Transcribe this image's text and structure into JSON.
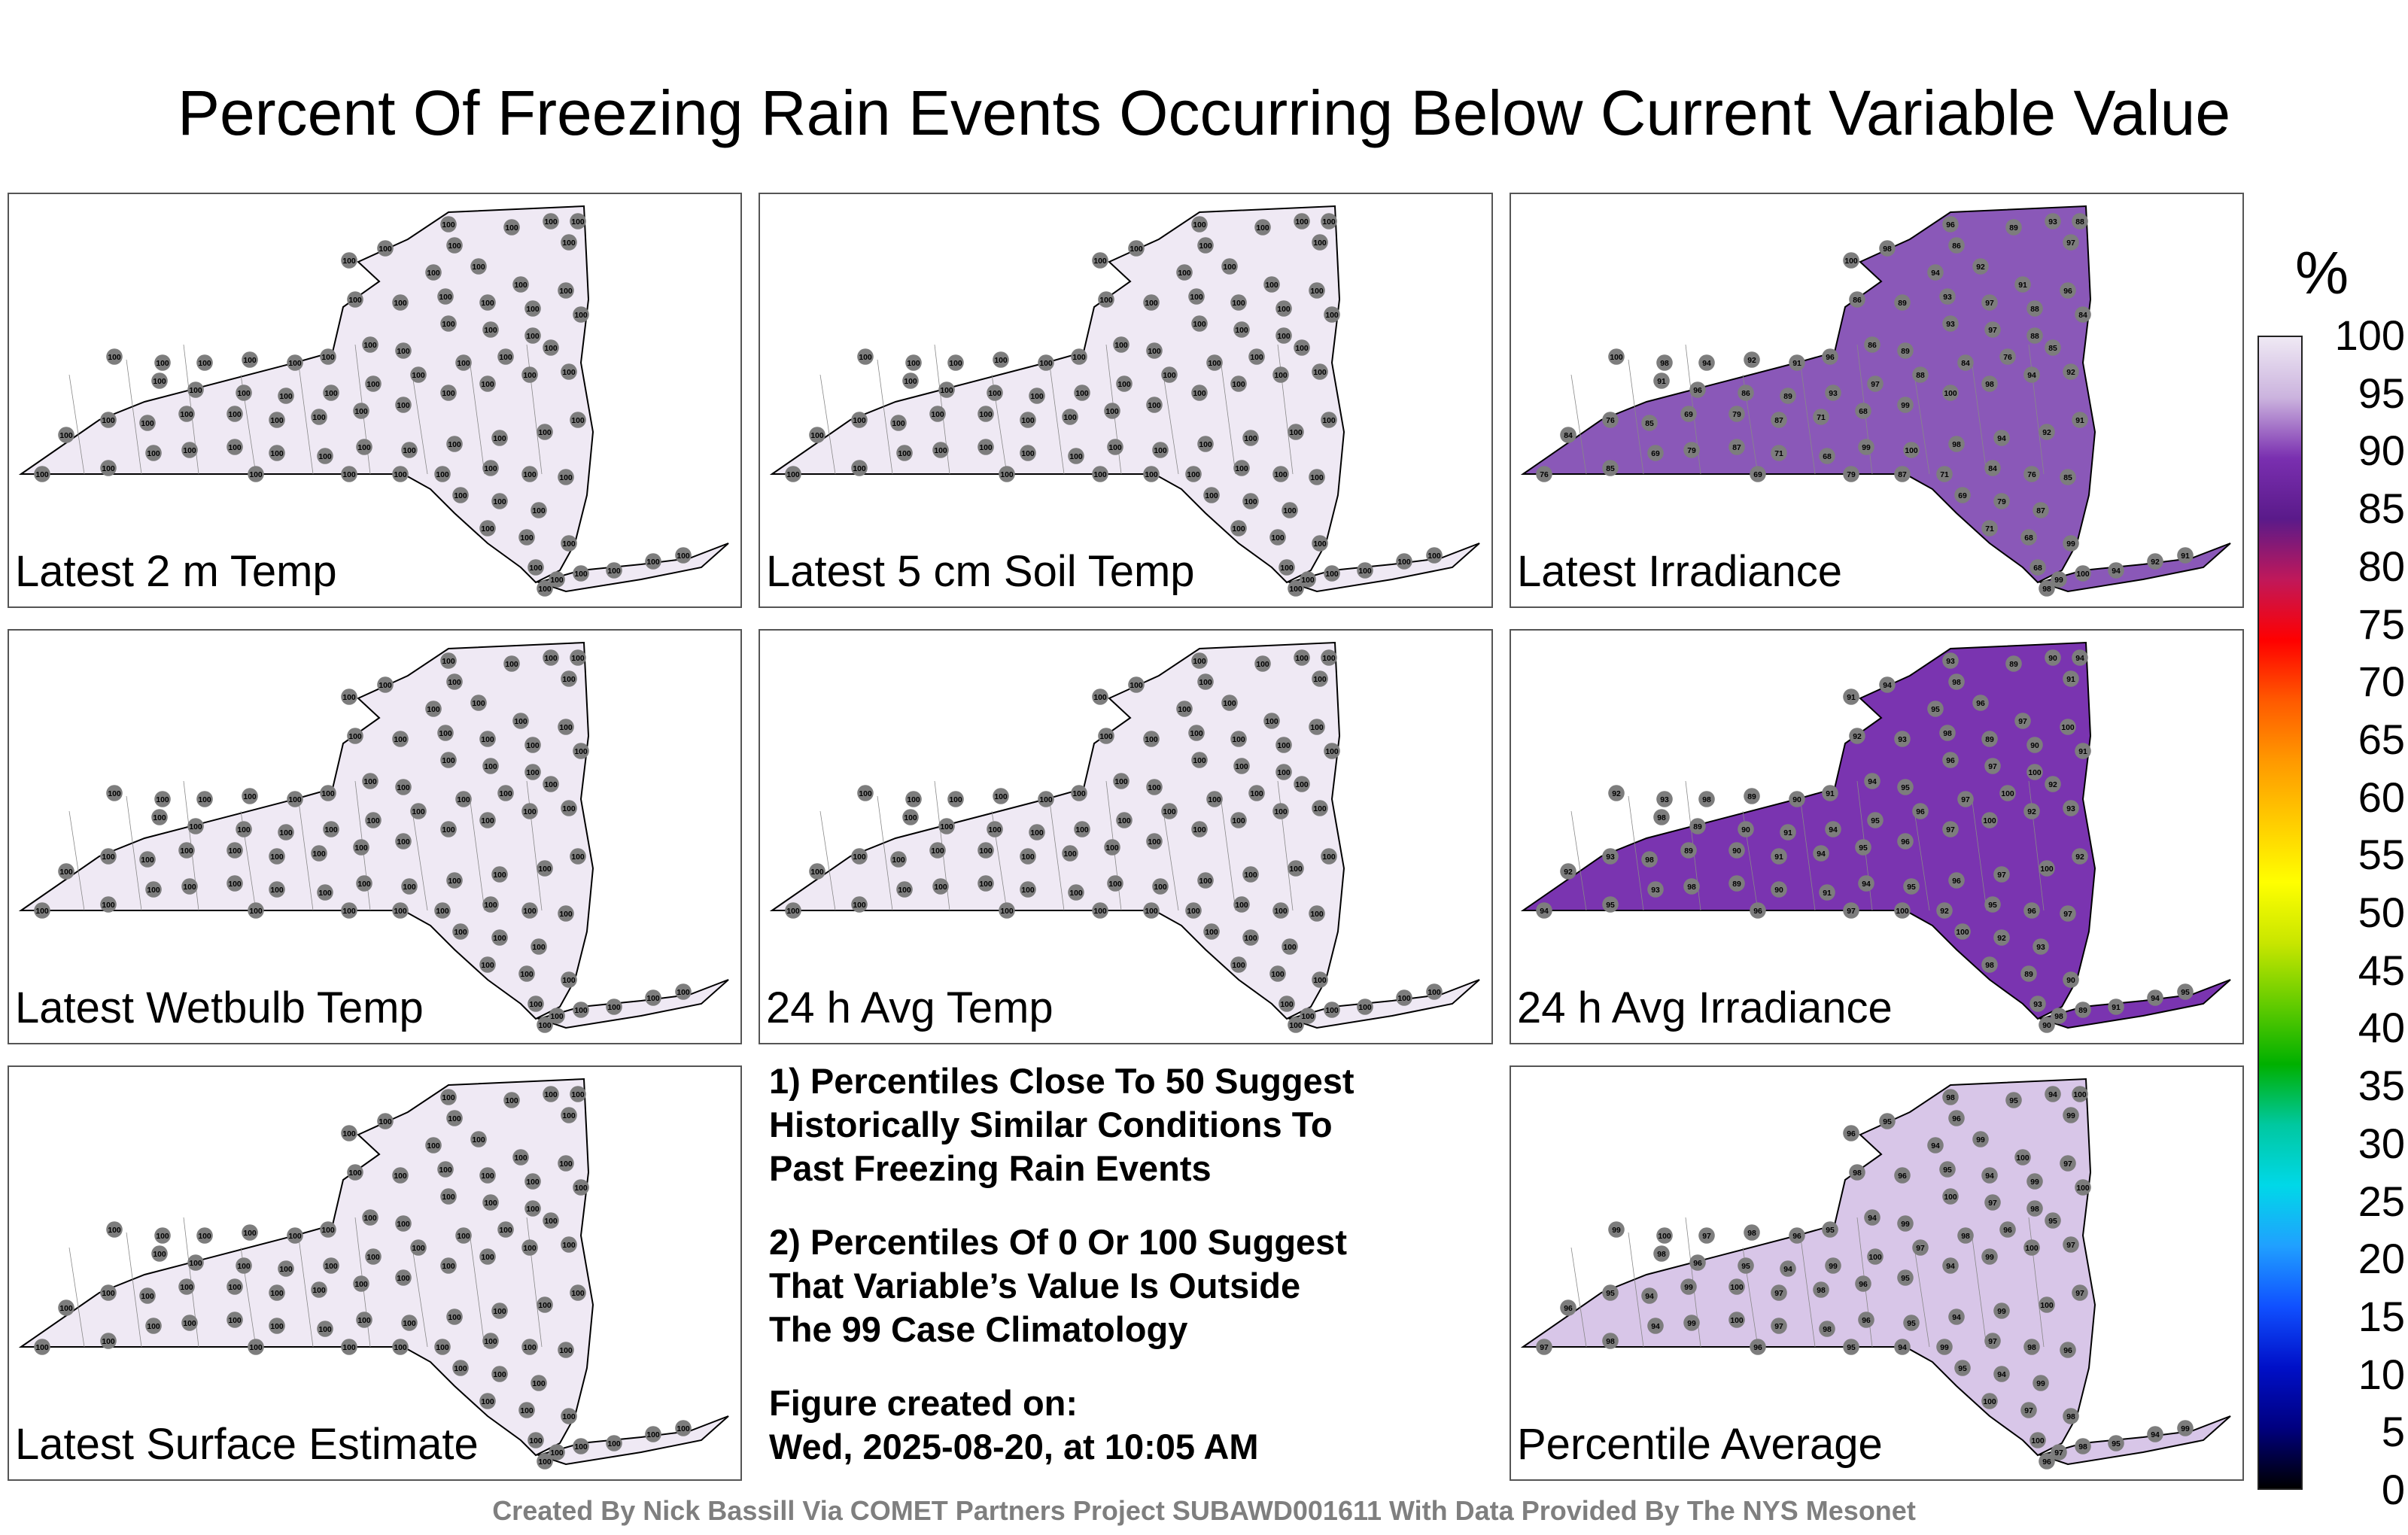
{
  "title": "Percent Of Freezing Rain Events Occurring Below Current Variable Value",
  "panels": [
    {
      "label": "Latest 2 m Temp",
      "fill": "#efe9f4",
      "stations": [
        "100"
      ]
    },
    {
      "label": "Latest 5 cm Soil Temp",
      "fill": "#efe9f4",
      "stations": [
        "100"
      ]
    },
    {
      "label": "Latest Irradiance",
      "fill": "#8a58b8",
      "stations": [
        "100",
        "98",
        "94",
        "92",
        "91",
        "96",
        "86",
        "89",
        "93",
        "97",
        "88",
        "84",
        "76",
        "85",
        "69",
        "79",
        "87",
        "71",
        "68",
        "99"
      ]
    },
    {
      "label": "Latest Wetbulb Temp",
      "fill": "#efe9f4",
      "stations": [
        "100"
      ]
    },
    {
      "label": "24 h Avg Temp",
      "fill": "#efe9f4",
      "stations": [
        "100"
      ]
    },
    {
      "label": "24 h Avg Irradiance",
      "fill": "#7a34b0",
      "stations": [
        "92",
        "93",
        "98",
        "89",
        "90",
        "91",
        "94",
        "95",
        "96",
        "97",
        "100"
      ]
    },
    {
      "label": "Latest Surface Estimate",
      "fill": "#efe9f4",
      "stations": [
        "100"
      ]
    },
    {
      "label": "Percentile Average",
      "fill": "#d8c6e8",
      "stations": [
        "99",
        "100",
        "97",
        "98",
        "96",
        "95",
        "94"
      ]
    }
  ],
  "notes": [
    {
      "lines": [
        "1) Percentiles Close To 50 Suggest",
        "Historically Similar Conditions To",
        "Past Freezing Rain Events"
      ]
    },
    {
      "lines": [
        "2) Percentiles Of 0 Or 100 Suggest",
        "That Variable’s Value Is Outside",
        "The 99 Case Climatology"
      ]
    },
    {
      "lines": [
        "Figure created on:",
        "Wed, 2025-08-20, at 10:05 AM"
      ]
    }
  ],
  "footer": "Created By Nick Bassill Via COMET Partners Project SUBAWD001611 With Data Provided By The NYS Mesonet",
  "colorbar": {
    "unit": "%",
    "ticks": [
      "100",
      "95",
      "90",
      "85",
      "80",
      "75",
      "70",
      "65",
      "60",
      "55",
      "50",
      "45",
      "40",
      "35",
      "30",
      "25",
      "20",
      "15",
      "10",
      "5",
      "0"
    ],
    "stops": [
      "#efe9f4",
      "#cbb3de",
      "#7a2fb0",
      "#5a1a8a",
      "#c0185a",
      "#ff0000",
      "#ff5a00",
      "#ff9900",
      "#ffcc00",
      "#ffff00",
      "#c8e600",
      "#64cc00",
      "#00b000",
      "#00c8a0",
      "#00d8e8",
      "#20a0ff",
      "#1050ff",
      "#0010c8",
      "#000080",
      "#000000"
    ]
  }
}
